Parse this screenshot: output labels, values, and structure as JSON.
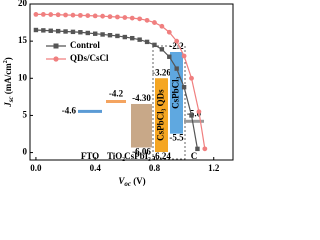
{
  "chart_data": {
    "type": "line",
    "ylabel_parts": [
      "J",
      "sc",
      " (mA/cm",
      "2",
      ")"
    ],
    "xlabel_parts": [
      "V",
      "oc",
      " (V)"
    ],
    "xlim": [
      -0.04,
      1.33
    ],
    "ylim": [
      -1,
      20
    ],
    "xticks": [
      {
        "value": 0,
        "label": "0.0"
      },
      0.4,
      0.8,
      1.2
    ],
    "yticks": [
      0,
      5,
      10,
      15,
      20
    ],
    "legend": "upper-left",
    "series": [
      {
        "name": "Control",
        "color": "#555555",
        "marker": "square",
        "x": [
          0,
          0.05,
          0.1,
          0.15,
          0.2,
          0.25,
          0.3,
          0.35,
          0.4,
          0.45,
          0.5,
          0.55,
          0.6,
          0.65,
          0.7,
          0.75,
          0.8,
          0.85,
          0.9,
          0.95,
          1.0,
          1.05,
          1.09
        ],
        "values": [
          16.5,
          16.45,
          16.4,
          16.35,
          16.3,
          16.25,
          16.2,
          16.1,
          16.0,
          15.9,
          15.8,
          15.7,
          15.55,
          15.4,
          15.2,
          14.9,
          14.5,
          13.9,
          12.9,
          11.3,
          8.8,
          5.0,
          0.5
        ]
      },
      {
        "name": "QDs/CsCl",
        "color": "#f07f7f",
        "marker": "circle",
        "x": [
          0,
          0.05,
          0.1,
          0.15,
          0.2,
          0.25,
          0.3,
          0.35,
          0.4,
          0.45,
          0.5,
          0.55,
          0.6,
          0.65,
          0.7,
          0.75,
          0.8,
          0.85,
          0.9,
          0.95,
          1.0,
          1.05,
          1.1,
          1.14
        ],
        "values": [
          18.6,
          18.6,
          18.58,
          18.55,
          18.52,
          18.5,
          18.47,
          18.44,
          18.4,
          18.36,
          18.3,
          18.25,
          18.18,
          18.1,
          18.0,
          17.8,
          17.5,
          17.0,
          16.2,
          15.0,
          13.0,
          10.0,
          5.5,
          0.5
        ]
      }
    ],
    "inset": {
      "levels": [
        {
          "name": "FTO",
          "top": "-4.6",
          "kind": "line",
          "color": "#5b9bd5"
        },
        {
          "name": "TiO₂",
          "top": "-4.2",
          "kind": "line",
          "color": "#f4a460"
        },
        {
          "name": "CsPbI₃",
          "top": "-4.30",
          "bottom": "-6.06",
          "kind": "box",
          "color": "#c8a888"
        },
        {
          "name": "CsPbCl₃ QDs",
          "top": "-3.26",
          "bottom": "-6.24",
          "kind": "vbox",
          "color": "#f5a623"
        },
        {
          "name": "CsPbCl₃",
          "top": "-2.2",
          "bottom": "-5.5",
          "kind": "vbox",
          "color": "#5fa8e0"
        },
        {
          "name": "C",
          "top": "-5.0",
          "kind": "line",
          "color": "#999999"
        }
      ]
    }
  }
}
